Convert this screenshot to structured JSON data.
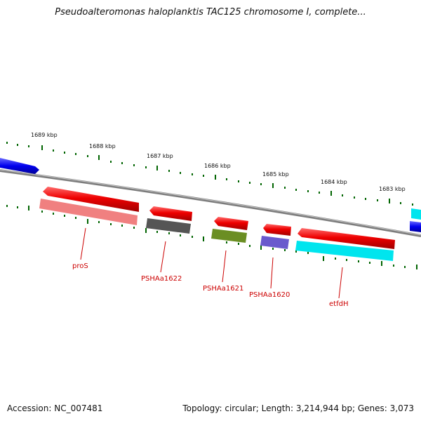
{
  "title": "Pseudoalteromonas haloplanktis TAC125 chromosome I, complete...",
  "footer": {
    "accession": "Accession: NC_007481",
    "summary": "Topology: circular; Length: 3,214,944 bp; Genes: 3,073"
  },
  "kbp_labels": [
    "1689 kbp",
    "1688 kbp",
    "1687 kbp",
    "1686 kbp",
    "1685 kbp",
    "1684 kbp",
    "1683 kbp"
  ],
  "genes": [
    {
      "name": "proS",
      "color": "#f08080"
    },
    {
      "name": "PSHAa1622",
      "color": "#555555"
    },
    {
      "name": "PSHAa1621",
      "color": "#6b8e23"
    },
    {
      "name": "PSHAa1620",
      "color": "#6a5acd"
    },
    {
      "name": "etfdH",
      "color": "#00e5ee"
    }
  ],
  "colors": {
    "cds": "#ee0000",
    "backbone": "#8a8a8a",
    "tick": "#006400",
    "side_feature": "#0000ee",
    "label": "#cc0000"
  }
}
